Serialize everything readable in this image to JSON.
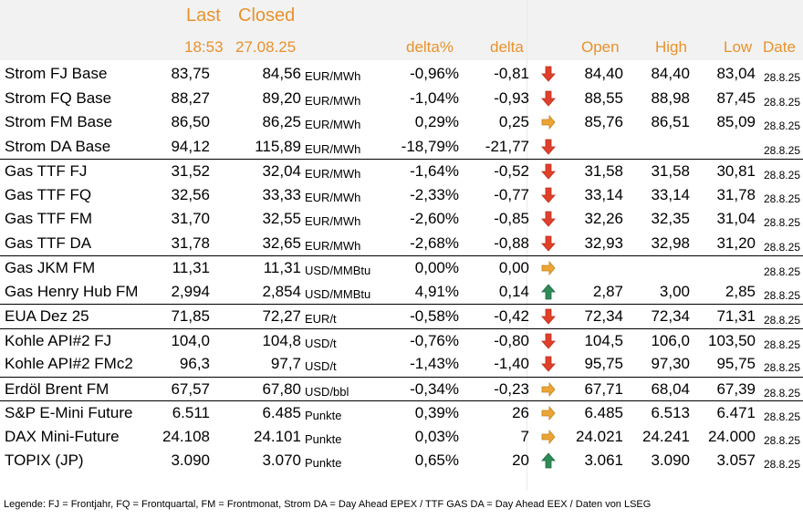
{
  "header": {
    "last": "Last",
    "closed": "Closed",
    "last_time": "18:53",
    "closed_date": "27.08.25",
    "delta_pct": "delta%",
    "delta": "delta",
    "open": "Open",
    "high": "High",
    "low": "Low",
    "date": "Date"
  },
  "colors": {
    "header": "#e8922c",
    "down": "#e0402a",
    "side": "#eba535",
    "up": "#2e8b57"
  },
  "rows": [
    {
      "name": "Strom FJ Base",
      "last": "83,75",
      "closed": "84,56",
      "unit": "EUR/MWh",
      "delta_pct": "-0,96%",
      "delta": "-0,81",
      "trend": "down",
      "open": "84,40",
      "high": "84,40",
      "low": "83,04",
      "date": "28.8.25"
    },
    {
      "name": "Strom FQ Base",
      "last": "88,27",
      "closed": "89,20",
      "unit": "EUR/MWh",
      "delta_pct": "-1,04%",
      "delta": "-0,93",
      "trend": "down",
      "open": "88,55",
      "high": "88,98",
      "low": "87,45",
      "date": "28.8.25"
    },
    {
      "name": "Strom FM Base",
      "last": "86,50",
      "closed": "86,25",
      "unit": "EUR/MWh",
      "delta_pct": "0,29%",
      "delta": "0,25",
      "trend": "side",
      "open": "85,76",
      "high": "86,51",
      "low": "85,09",
      "date": "28.8.25"
    },
    {
      "name": "Strom DA Base",
      "last": "94,12",
      "closed": "115,89",
      "unit": "EUR/MWh",
      "delta_pct": "-18,79%",
      "delta": "-21,77",
      "trend": "down",
      "open": "",
      "high": "",
      "low": "",
      "date": "28.8.25"
    },
    {
      "name": "Gas TTF FJ",
      "last": "31,52",
      "closed": "32,04",
      "unit": "EUR/MWh",
      "delta_pct": "-1,64%",
      "delta": "-0,52",
      "trend": "down",
      "open": "31,58",
      "high": "31,58",
      "low": "30,81",
      "date": "28.8.25",
      "sep": true
    },
    {
      "name": "Gas TTF FQ",
      "last": "32,56",
      "closed": "33,33",
      "unit": "EUR/MWh",
      "delta_pct": "-2,33%",
      "delta": "-0,77",
      "trend": "down",
      "open": "33,14",
      "high": "33,14",
      "low": "31,78",
      "date": "28.8.25"
    },
    {
      "name": "Gas TTF FM",
      "last": "31,70",
      "closed": "32,55",
      "unit": "EUR/MWh",
      "delta_pct": "-2,60%",
      "delta": "-0,85",
      "trend": "down",
      "open": "32,26",
      "high": "32,35",
      "low": "31,04",
      "date": "28.8.25"
    },
    {
      "name": "Gas TTF DA",
      "last": "31,78",
      "closed": "32,65",
      "unit": "EUR/MWh",
      "delta_pct": "-2,68%",
      "delta": "-0,88",
      "trend": "down",
      "open": "32,93",
      "high": "32,98",
      "low": "31,20",
      "date": "28.8.25"
    },
    {
      "name": "Gas JKM FM",
      "last": "11,31",
      "closed": "11,31",
      "unit": "USD/MMBtu",
      "delta_pct": "0,00%",
      "delta": "0,00",
      "trend": "side",
      "open": "",
      "high": "",
      "low": "",
      "date": "28.8.25",
      "sep": true
    },
    {
      "name": "Gas Henry Hub FM",
      "last": "2,994",
      "closed": "2,854",
      "unit": "USD/MMBtu",
      "delta_pct": "4,91%",
      "delta": "0,14",
      "trend": "up",
      "open": "2,87",
      "high": "3,00",
      "low": "2,85",
      "date": "28.8.25"
    },
    {
      "name": "EUA Dez 25",
      "last": "71,85",
      "closed": "72,27",
      "unit": "EUR/t",
      "delta_pct": "-0,58%",
      "delta": "-0,42",
      "trend": "down",
      "open": "72,34",
      "high": "72,34",
      "low": "71,31",
      "date": "28.8.25",
      "sep": true
    },
    {
      "name": "Kohle API#2 FJ",
      "last": "104,0",
      "closed": "104,8",
      "unit": "USD/t",
      "delta_pct": "-0,76%",
      "delta": "-0,80",
      "trend": "down",
      "open": "104,5",
      "high": "106,0",
      "low": "103,50",
      "date": "28.8.25",
      "sep": true
    },
    {
      "name": "Kohle API#2 FMc2",
      "last": "96,3",
      "closed": "97,7",
      "unit": "USD/t",
      "delta_pct": "-1,43%",
      "delta": "-1,40",
      "trend": "down",
      "open": "95,75",
      "high": "97,30",
      "low": "95,75",
      "date": "28.8.25"
    },
    {
      "name": "Erdöl Brent FM",
      "last": "67,57",
      "closed": "67,80",
      "unit": "USD/bbl",
      "delta_pct": "-0,34%",
      "delta": "-0,23",
      "trend": "side",
      "open": "67,71",
      "high": "68,04",
      "low": "67,39",
      "date": "28.8.25",
      "sep": true
    },
    {
      "name": "S&P E-Mini Future",
      "last": "6.511",
      "closed": "6.485",
      "unit": "Punkte",
      "delta_pct": "0,39%",
      "delta": "26",
      "trend": "side",
      "open": "6.485",
      "high": "6.513",
      "low": "6.471",
      "date": "28.8.25",
      "sep": true
    },
    {
      "name": "DAX Mini-Future",
      "last": "24.108",
      "closed": "24.101",
      "unit": "Punkte",
      "delta_pct": "0,03%",
      "delta": "7",
      "trend": "side",
      "open": "24.021",
      "high": "24.241",
      "low": "24.000",
      "date": "28.8.25"
    },
    {
      "name": "TOPIX (JP)",
      "last": "3.090",
      "closed": "3.070",
      "unit": "Punkte",
      "delta_pct": "0,65%",
      "delta": "20",
      "trend": "up",
      "open": "3.061",
      "high": "3.090",
      "low": "3.057",
      "date": "28.8.25"
    }
  ],
  "legend": "Legende: FJ = Frontjahr, FQ = Frontquartal, FM = Frontmonat, Strom DA = Day Ahead EPEX / TTF GAS DA = Day Ahead EEX / Daten von LSEG"
}
